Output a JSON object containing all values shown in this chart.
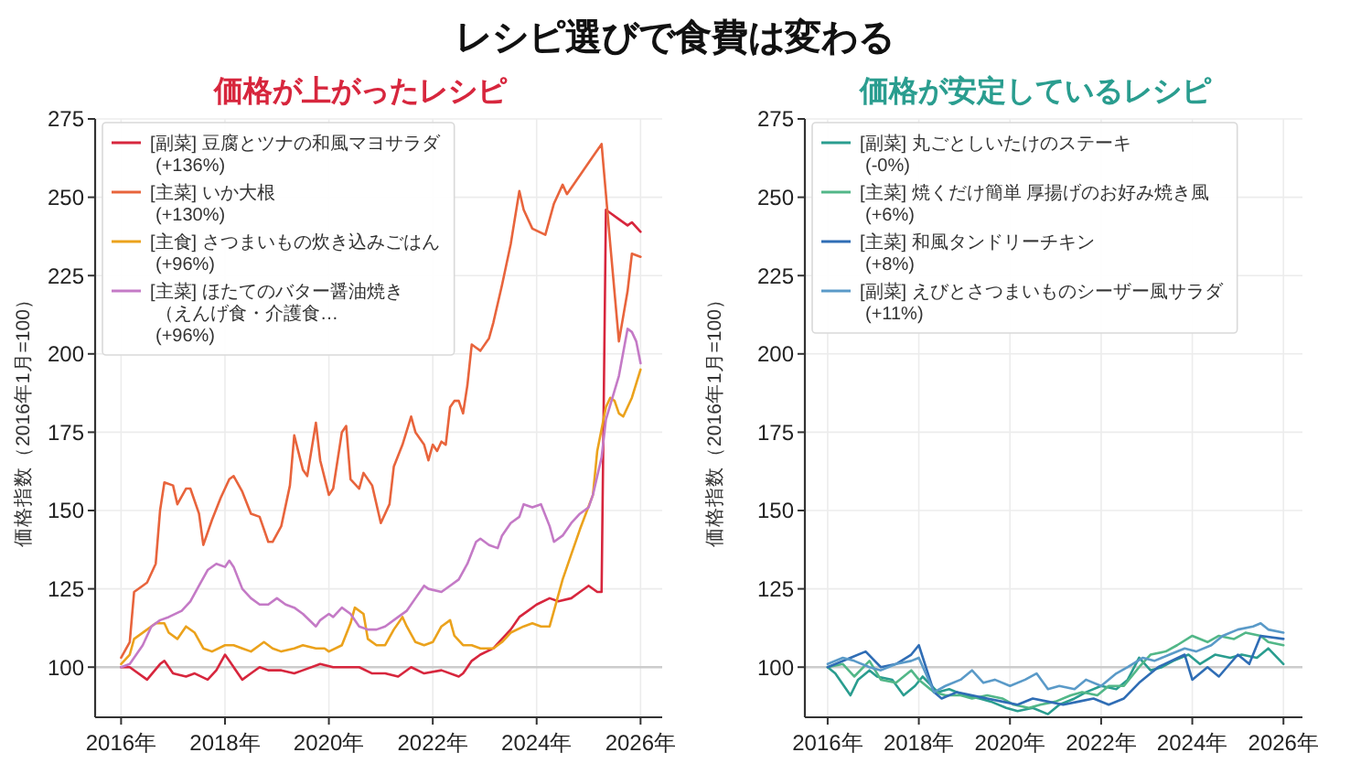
{
  "chart_data": [
    {
      "type": "line",
      "title": "レシピ選びで食費は変わる",
      "subtitle": "価格が上がったレシピ",
      "ylabel": "価格指数（2016年1月=100）",
      "xlim": [
        "2015-07",
        "2026-06"
      ],
      "xticks": [
        {
          "value": "2016",
          "label": "2016年"
        },
        {
          "value": "2018",
          "label": "2018年"
        },
        {
          "value": "2020",
          "label": "2020年"
        },
        {
          "value": "2022",
          "label": "2022年"
        },
        {
          "value": "2024",
          "label": "2024年"
        },
        {
          "value": "2026",
          "label": "2026年"
        }
      ],
      "ylim": [
        84,
        275
      ],
      "yticks": [
        100,
        125,
        150,
        175,
        200,
        225,
        250,
        275
      ],
      "grid": true,
      "legend": "top left",
      "ref_lines": [
        {
          "axis": "y",
          "value": 100,
          "color": "#cccccc"
        }
      ],
      "series": [
        {
          "name": "[副菜] 豆腐とツナの和風マヨサラダ\n(+136%)",
          "color": "#d7263d",
          "x": [
            "2016-01",
            "2016-03",
            "2016-07",
            "2016-10",
            "2016-11",
            "2017-01",
            "2017-04",
            "2017-06",
            "2017-09",
            "2017-11",
            "2018-01",
            "2018-02",
            "2018-05",
            "2018-07",
            "2018-09",
            "2018-11",
            "2019-02",
            "2019-05",
            "2019-07",
            "2019-11",
            "2020-02",
            "2020-05",
            "2020-08",
            "2020-11",
            "2021-02",
            "2021-05",
            "2021-08",
            "2021-11",
            "2022-03",
            "2022-07",
            "2022-08",
            "2022-10",
            "2022-12",
            "2023-03",
            "2023-07",
            "2023-09",
            "2023-11",
            "2024-01",
            "2024-04",
            "2024-06",
            "2024-09",
            "2024-11",
            "2025-01",
            "2025-03",
            "2025-04",
            "2025-05",
            "2025-06",
            "2025-08",
            "2025-10",
            "2025-11",
            "2026-01"
          ],
          "values": [
            100,
            100,
            96,
            101,
            102,
            98,
            97,
            98,
            96,
            99,
            104,
            102,
            96,
            98,
            100,
            99,
            99,
            98,
            99,
            101,
            100,
            100,
            100,
            98,
            98,
            97,
            100,
            98,
            99,
            97,
            98,
            102,
            104,
            106,
            112,
            116,
            118,
            120,
            122,
            121,
            122,
            124,
            126,
            124,
            124,
            246,
            245,
            243,
            241,
            242,
            239
          ]
        },
        {
          "name": "[主菜] いか大根\n(+130%)",
          "color": "#e8643c",
          "x": [
            "2016-01",
            "2016-03",
            "2016-04",
            "2016-06",
            "2016-07",
            "2016-09",
            "2016-10",
            "2016-11",
            "2017-01",
            "2017-02",
            "2017-04",
            "2017-05",
            "2017-07",
            "2017-08",
            "2017-10",
            "2017-12",
            "2018-02",
            "2018-03",
            "2018-05",
            "2018-07",
            "2018-09",
            "2018-11",
            "2018-12",
            "2019-02",
            "2019-04",
            "2019-05",
            "2019-07",
            "2019-08",
            "2019-10",
            "2019-11",
            "2020-01",
            "2020-02",
            "2020-04",
            "2020-05",
            "2020-06",
            "2020-08",
            "2020-09",
            "2020-11",
            "2021-01",
            "2021-03",
            "2021-04",
            "2021-06",
            "2021-08",
            "2021-09",
            "2021-11",
            "2021-12",
            "2022-01",
            "2022-02",
            "2022-03",
            "2022-04",
            "2022-05",
            "2022-06",
            "2022-07",
            "2022-08",
            "2022-09",
            "2022-10",
            "2022-11",
            "2022-12",
            "2023-02",
            "2023-03",
            "2023-05",
            "2023-07",
            "2023-09",
            "2023-10",
            "2023-12",
            "2024-03",
            "2024-05",
            "2024-07",
            "2024-08",
            "2024-10",
            "2024-12",
            "2025-02",
            "2025-04",
            "2025-06",
            "2025-08",
            "2025-10",
            "2025-11",
            "2026-01"
          ],
          "values": [
            103,
            108,
            124,
            126,
            127,
            133,
            150,
            159,
            158,
            152,
            157,
            157,
            149,
            139,
            147,
            154,
            160,
            161,
            156,
            149,
            148,
            140,
            140,
            145,
            158,
            174,
            163,
            161,
            178,
            166,
            155,
            157,
            175,
            177,
            160,
            157,
            162,
            158,
            146,
            152,
            164,
            171,
            180,
            175,
            171,
            166,
            171,
            169,
            172,
            171,
            183,
            185,
            185,
            181,
            190,
            203,
            202,
            201,
            205,
            210,
            222,
            235,
            252,
            246,
            240,
            238,
            248,
            254,
            251,
            255,
            259,
            263,
            267,
            235,
            204,
            220,
            232,
            231
          ]
        },
        {
          "name": "[主食] さつまいもの炊き込みごはん\n(+96%)",
          "color": "#eba21c",
          "x": [
            "2016-01",
            "2016-03",
            "2016-04",
            "2016-07",
            "2016-09",
            "2016-11",
            "2016-12",
            "2017-02",
            "2017-04",
            "2017-06",
            "2017-08",
            "2017-10",
            "2018-01",
            "2018-03",
            "2018-05",
            "2018-07",
            "2018-09",
            "2018-10",
            "2018-12",
            "2019-02",
            "2019-05",
            "2019-07",
            "2019-10",
            "2019-12",
            "2020-01",
            "2020-04",
            "2020-06",
            "2020-07",
            "2020-09",
            "2020-10",
            "2020-12",
            "2021-02",
            "2021-04",
            "2021-06",
            "2021-07",
            "2021-09",
            "2021-11",
            "2022-01",
            "2022-03",
            "2022-05",
            "2022-06",
            "2022-08",
            "2022-10",
            "2022-12",
            "2023-03",
            "2023-05",
            "2023-07",
            "2023-10",
            "2023-12",
            "2024-02",
            "2024-04",
            "2024-05",
            "2024-07",
            "2024-09",
            "2024-11",
            "2025-02",
            "2025-03",
            "2025-05",
            "2025-06",
            "2025-07",
            "2025-08",
            "2025-09",
            "2025-11",
            "2026-01"
          ],
          "values": [
            101,
            104,
            109,
            112,
            114,
            114,
            111,
            109,
            113,
            111,
            106,
            105,
            107,
            107,
            106,
            105,
            107,
            108,
            106,
            105,
            106,
            107,
            106,
            106,
            105,
            107,
            114,
            119,
            117,
            109,
            107,
            107,
            112,
            116,
            113,
            108,
            107,
            108,
            113,
            115,
            110,
            107,
            107,
            106,
            106,
            108,
            111,
            113,
            114,
            113,
            113,
            118,
            128,
            136,
            144,
            155,
            169,
            183,
            186,
            185,
            181,
            180,
            186,
            195
          ]
        },
        {
          "name": "[主菜] ほたてのバター醤油焼き（えんげ食・介護食…\n(+96%)",
          "color": "#c47ac6",
          "x": [
            "2016-01",
            "2016-03",
            "2016-06",
            "2016-08",
            "2016-10",
            "2016-12",
            "2017-03",
            "2017-05",
            "2017-07",
            "2017-09",
            "2017-11",
            "2018-01",
            "2018-02",
            "2018-03",
            "2018-05",
            "2018-07",
            "2018-09",
            "2018-11",
            "2019-01",
            "2019-03",
            "2019-05",
            "2019-07",
            "2019-10",
            "2019-11",
            "2020-01",
            "2020-02",
            "2020-04",
            "2020-06",
            "2020-08",
            "2020-10",
            "2020-12",
            "2021-02",
            "2021-05",
            "2021-07",
            "2021-09",
            "2021-11",
            "2021-12",
            "2022-03",
            "2022-05",
            "2022-07",
            "2022-09",
            "2022-11",
            "2022-12",
            "2023-02",
            "2023-04",
            "2023-05",
            "2023-07",
            "2023-09",
            "2023-10",
            "2023-12",
            "2024-02",
            "2024-04",
            "2024-05",
            "2024-07",
            "2024-09",
            "2024-11",
            "2025-01",
            "2025-02",
            "2025-04",
            "2025-05",
            "2025-08",
            "2025-10",
            "2025-11",
            "2025-12",
            "2026-01"
          ],
          "values": [
            100,
            101,
            107,
            113,
            115,
            116,
            118,
            121,
            126,
            131,
            133,
            132,
            134,
            132,
            125,
            122,
            120,
            120,
            122,
            120,
            119,
            117,
            113,
            115,
            117,
            116,
            119,
            117,
            113,
            112,
            112,
            113,
            116,
            118,
            122,
            126,
            125,
            124,
            126,
            128,
            133,
            140,
            141,
            139,
            138,
            142,
            146,
            148,
            152,
            151,
            152,
            145,
            140,
            142,
            146,
            149,
            151,
            155,
            167,
            179,
            193,
            208,
            207,
            204,
            197
          ]
        }
      ]
    },
    {
      "type": "line",
      "subtitle": "価格が安定しているレシピ",
      "ylabel": "価格指数（2016年1月=100）",
      "xlim": [
        "2015-07",
        "2026-06"
      ],
      "xticks": [
        {
          "value": "2016",
          "label": "2016年"
        },
        {
          "value": "2018",
          "label": "2018年"
        },
        {
          "value": "2020",
          "label": "2020年"
        },
        {
          "value": "2022",
          "label": "2022年"
        },
        {
          "value": "2024",
          "label": "2024年"
        },
        {
          "value": "2026",
          "label": "2026年"
        }
      ],
      "ylim": [
        84,
        275
      ],
      "yticks": [
        100,
        125,
        150,
        175,
        200,
        225,
        250,
        275
      ],
      "grid": true,
      "legend": "top left",
      "ref_lines": [
        {
          "axis": "y",
          "value": 100,
          "color": "#cccccc"
        }
      ],
      "series": [
        {
          "name": "[副菜] 丸ごとしいたけのステーキ\n(-0%)",
          "color": "#2a9d8f",
          "x": [
            "2016-01",
            "2016-03",
            "2016-07",
            "2016-09",
            "2016-12",
            "2017-02",
            "2017-06",
            "2017-09",
            "2017-12",
            "2018-02",
            "2018-06",
            "2018-09",
            "2019-01",
            "2019-05",
            "2019-08",
            "2019-12",
            "2020-03",
            "2020-07",
            "2020-11",
            "2021-02",
            "2021-06",
            "2021-09",
            "2022-01",
            "2022-05",
            "2022-08",
            "2022-11",
            "2023-02",
            "2023-05",
            "2023-08",
            "2023-12",
            "2024-03",
            "2024-07",
            "2024-11",
            "2025-02",
            "2025-06",
            "2025-09",
            "2026-01"
          ],
          "values": [
            100,
            98,
            91,
            96,
            99,
            97,
            96,
            91,
            94,
            97,
            92,
            93,
            91,
            90,
            89,
            87,
            86,
            87,
            85,
            88,
            90,
            92,
            94,
            93,
            96,
            103,
            99,
            100,
            102,
            104,
            101,
            104,
            103,
            104,
            103,
            106,
            101
          ]
        },
        {
          "name": "[主菜] 焼くだけ簡単 厚揚げのお好み焼き風\n(+6%)",
          "color": "#52b788",
          "x": [
            "2016-01",
            "2016-05",
            "2016-08",
            "2016-12",
            "2017-03",
            "2017-07",
            "2017-11",
            "2018-01",
            "2018-05",
            "2018-08",
            "2018-12",
            "2019-03",
            "2019-07",
            "2019-11",
            "2020-02",
            "2020-06",
            "2020-09",
            "2021-01",
            "2021-05",
            "2021-08",
            "2021-12",
            "2022-03",
            "2022-07",
            "2022-11",
            "2023-02",
            "2023-06",
            "2023-09",
            "2024-01",
            "2024-05",
            "2024-08",
            "2024-12",
            "2025-03",
            "2025-07",
            "2025-09",
            "2026-01"
          ],
          "values": [
            100,
            101,
            97,
            102,
            96,
            95,
            99,
            96,
            92,
            91,
            91,
            90,
            91,
            90,
            88,
            87,
            88,
            89,
            91,
            92,
            91,
            94,
            94,
            100,
            104,
            105,
            107,
            110,
            108,
            110,
            109,
            111,
            110,
            108,
            107
          ]
        },
        {
          "name": "[主菜] 和風タンドリーチキン\n(+8%)",
          "color": "#2f6db5",
          "x": [
            "2016-01",
            "2016-07",
            "2016-11",
            "2017-03",
            "2017-07",
            "2017-11",
            "2018-01",
            "2018-05",
            "2018-07",
            "2018-11",
            "2019-03",
            "2019-07",
            "2019-11",
            "2020-03",
            "2020-07",
            "2020-11",
            "2021-03",
            "2021-07",
            "2021-11",
            "2022-03",
            "2022-07",
            "2022-11",
            "2023-04",
            "2023-11",
            "2024-01",
            "2024-05",
            "2024-08",
            "2025-01",
            "2025-04",
            "2025-07",
            "2026-01"
          ],
          "values": [
            100,
            103,
            105,
            100,
            101,
            104,
            107,
            92,
            90,
            92,
            91,
            90,
            89,
            88,
            90,
            89,
            88,
            89,
            90,
            88,
            90,
            95,
            100,
            104,
            96,
            100,
            97,
            104,
            101,
            110,
            109
          ]
        },
        {
          "name": "[副菜] えびとさつまいものシーザー風サラダ\n(+11%)",
          "color": "#5a9ac8",
          "x": [
            "2016-01",
            "2016-05",
            "2016-08",
            "2016-12",
            "2017-03",
            "2017-07",
            "2017-11",
            "2018-01",
            "2018-05",
            "2018-08",
            "2018-12",
            "2019-03",
            "2019-06",
            "2019-09",
            "2020-01",
            "2020-05",
            "2020-08",
            "2020-11",
            "2021-02",
            "2021-06",
            "2021-09",
            "2022-01",
            "2022-05",
            "2022-08",
            "2022-12",
            "2023-03",
            "2023-07",
            "2023-11",
            "2024-02",
            "2024-06",
            "2024-09",
            "2025-01",
            "2025-05",
            "2025-07",
            "2025-09",
            "2026-01"
          ],
          "values": [
            101,
            103,
            102,
            100,
            99,
            101,
            102,
            103,
            92,
            94,
            96,
            99,
            95,
            96,
            94,
            96,
            98,
            93,
            94,
            93,
            96,
            94,
            98,
            100,
            103,
            102,
            104,
            106,
            105,
            107,
            110,
            112,
            113,
            114,
            112,
            111
          ]
        }
      ]
    }
  ]
}
